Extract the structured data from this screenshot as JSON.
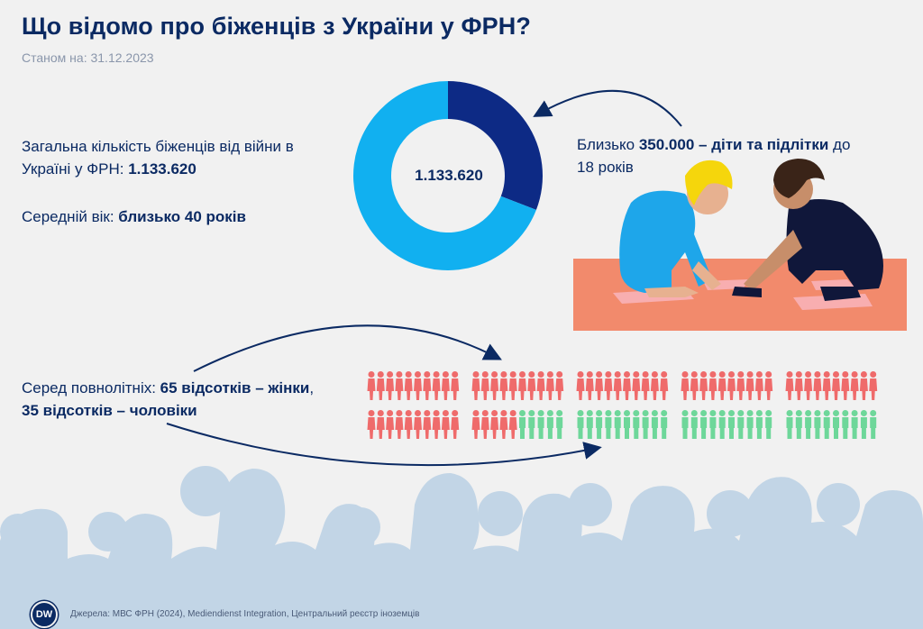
{
  "header": {
    "title": "Що відомо про біженців з України у ФРН?",
    "date": "Станом на: 31.12.2023"
  },
  "total_block": {
    "line1": "Загальна кількість біженців від війни в",
    "line2_prefix": "Україні у ФРН: ",
    "line2_value": "1.133.620"
  },
  "age_block": {
    "prefix": "Середній вік: ",
    "value": "близько 40 років"
  },
  "donut": {
    "center_label": "1.133.620",
    "total": 1133620,
    "children": 350000,
    "colors": {
      "children": "#0d2a85",
      "others": "#11b0f0"
    }
  },
  "children_block": {
    "prefix": "Близько ",
    "value": "350.000 – діти та підлітки",
    "suffix": " до",
    "line2": "18 років"
  },
  "adults_block": {
    "prefix": "Серед повнолітніх: ",
    "women": "65 відсотків – жінки",
    "comma": ",",
    "men": "35 відсотків – чоловіки"
  },
  "people_grid": {
    "women_pct": 65,
    "men_pct": 35,
    "colors": {
      "women": "#ef6b6b",
      "men": "#6ed79a"
    }
  },
  "footer": {
    "logo": "DW",
    "sources": "Джерела: МВС ФРН (2024), Mediendienst Integration, Центральний реєстр іноземців"
  }
}
